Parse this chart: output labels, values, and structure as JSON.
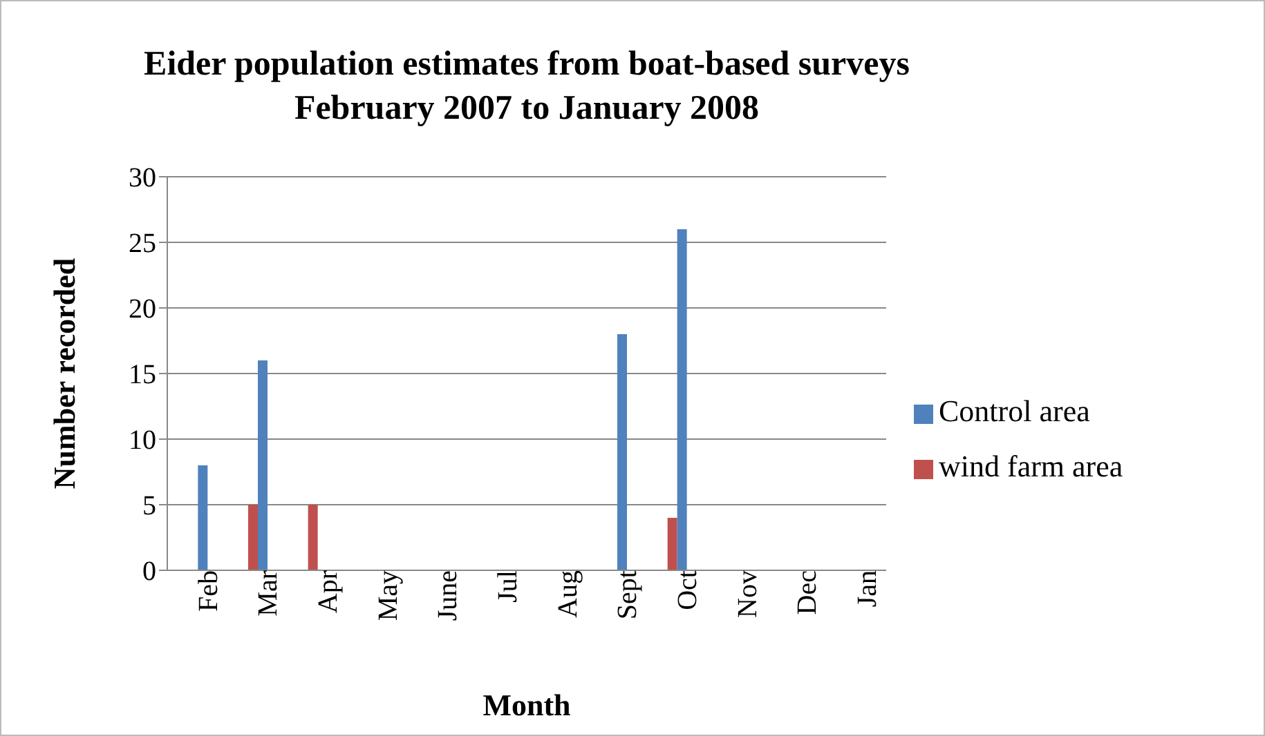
{
  "chart_data": {
    "type": "bar",
    "title": "Eider population estimates from boat-based surveys\nFebruary 2007 to January 2008",
    "xlabel": "Month",
    "ylabel": "Number recorded",
    "categories": [
      "Feb",
      "Mar",
      "Apr",
      "May",
      "June",
      "Jul",
      "Aug",
      "Sept",
      "Oct",
      "Nov",
      "Dec",
      "Jan"
    ],
    "series": [
      {
        "name": "wind farm area",
        "color": "#c0504d",
        "values": [
          0,
          5,
          5,
          0,
          0,
          0,
          0,
          0,
          4,
          0,
          0,
          0
        ]
      },
      {
        "name": "Control area",
        "color": "#4f81bd",
        "values": [
          8,
          16,
          0,
          0,
          0,
          0,
          0,
          18,
          26,
          0,
          0,
          0
        ]
      }
    ],
    "ylim": [
      0,
      30
    ],
    "yticks": [
      0,
      5,
      10,
      15,
      20,
      25,
      30
    ],
    "grid": "y",
    "legend": "right"
  }
}
